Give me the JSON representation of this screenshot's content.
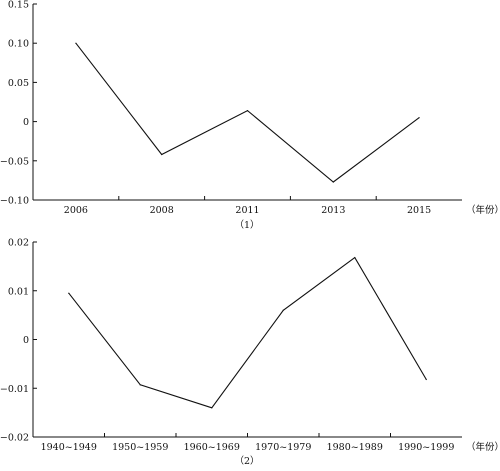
{
  "chart_data": [
    {
      "type": "line",
      "caption": "（1）",
      "x_unit": "（年份）",
      "categories": [
        "2006",
        "2008",
        "2011",
        "2013",
        "2015"
      ],
      "series": [
        {
          "values": [
            0.1,
            -0.042,
            0.014,
            -0.077,
            0.005
          ]
        }
      ],
      "ylim": [
        -0.1,
        0.15
      ],
      "yticks": [
        -0.1,
        -0.05,
        0,
        0.05,
        0.1,
        0.15
      ],
      "ytick_labels": [
        "−0.10",
        "−0.05",
        "0",
        "0.05",
        "0.10",
        "0.15"
      ],
      "grid": false,
      "legend": "none"
    },
    {
      "type": "line",
      "caption": "（2）",
      "x_unit": "（年份）",
      "categories": [
        "1940~1949",
        "1950~1959",
        "1960~1969",
        "1970~1979",
        "1980~1989",
        "1990~1999"
      ],
      "series": [
        {
          "values": [
            0.0095,
            -0.0093,
            -0.014,
            0.006,
            0.0168,
            -0.0082
          ]
        }
      ],
      "ylim": [
        -0.02,
        0.02
      ],
      "yticks": [
        -0.02,
        -0.01,
        0,
        0.01,
        0.02
      ],
      "ytick_labels": [
        "−0.02",
        "−0.01",
        "0",
        "0.01",
        "0.02"
      ],
      "grid": false,
      "legend": "none"
    }
  ]
}
